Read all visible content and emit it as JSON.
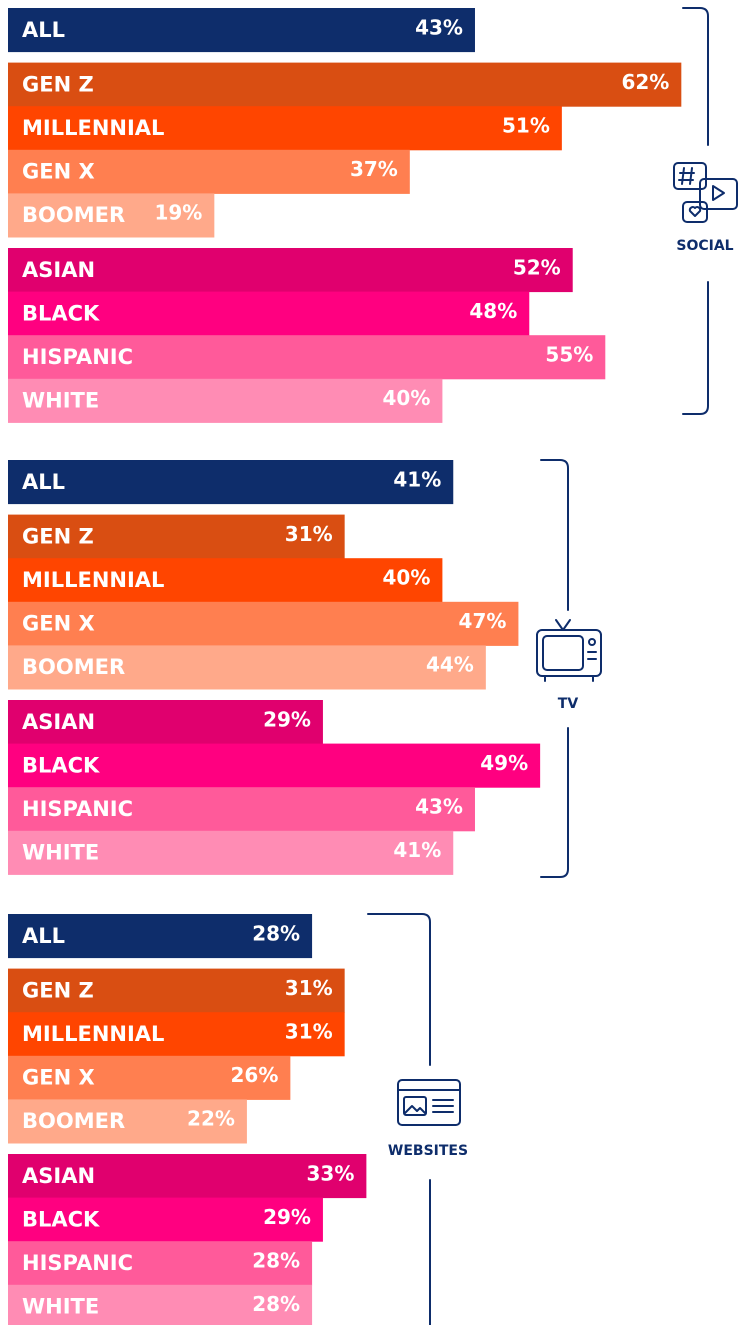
{
  "chart_data": [
    {
      "type": "bar",
      "title": "SOCIAL",
      "categories": [
        "ALL",
        "GEN Z",
        "MILLENNIAL",
        "GEN X",
        "BOOMER",
        "ASIAN",
        "BLACK",
        "HISPANIC",
        "WHITE"
      ],
      "values": [
        43,
        62,
        51,
        37,
        19,
        52,
        48,
        55,
        40
      ],
      "value_labels": [
        "43%",
        "62%",
        "51%",
        "37%",
        "19%",
        "52%",
        "48%",
        "55%",
        "40%"
      ],
      "colors": [
        "#0e2d6b",
        "#d94e12",
        "#ff4500",
        "#ff7f50",
        "#ffa98a",
        "#e0006e",
        "#ff0080",
        "#ff5a9a",
        "#ff8cb4"
      ]
    },
    {
      "type": "bar",
      "title": "TV",
      "categories": [
        "ALL",
        "GEN Z",
        "MILLENNIAL",
        "GEN X",
        "BOOMER",
        "ASIAN",
        "BLACK",
        "HISPANIC",
        "WHITE"
      ],
      "values": [
        41,
        31,
        40,
        47,
        44,
        29,
        49,
        43,
        41
      ],
      "value_labels": [
        "41%",
        "31%",
        "40%",
        "47%",
        "44%",
        "29%",
        "49%",
        "43%",
        "41%"
      ],
      "colors": [
        "#0e2d6b",
        "#d94e12",
        "#ff4500",
        "#ff7f50",
        "#ffa98a",
        "#e0006e",
        "#ff0080",
        "#ff5a9a",
        "#ff8cb4"
      ]
    },
    {
      "type": "bar",
      "title": "WEBSITES",
      "categories": [
        "ALL",
        "GEN Z",
        "MILLENNIAL",
        "GEN X",
        "BOOMER",
        "ASIAN",
        "BLACK",
        "HISPANIC",
        "WHITE"
      ],
      "values": [
        28,
        31,
        31,
        26,
        22,
        33,
        29,
        28,
        28
      ],
      "value_labels": [
        "28%",
        "31%",
        "31%",
        "26%",
        "22%",
        "33%",
        "29%",
        "28%",
        "28%"
      ],
      "colors": [
        "#0e2d6b",
        "#d94e12",
        "#ff4500",
        "#ff7f50",
        "#ffa98a",
        "#e0006e",
        "#ff0080",
        "#ff5a9a",
        "#ff8cb4"
      ]
    }
  ]
}
